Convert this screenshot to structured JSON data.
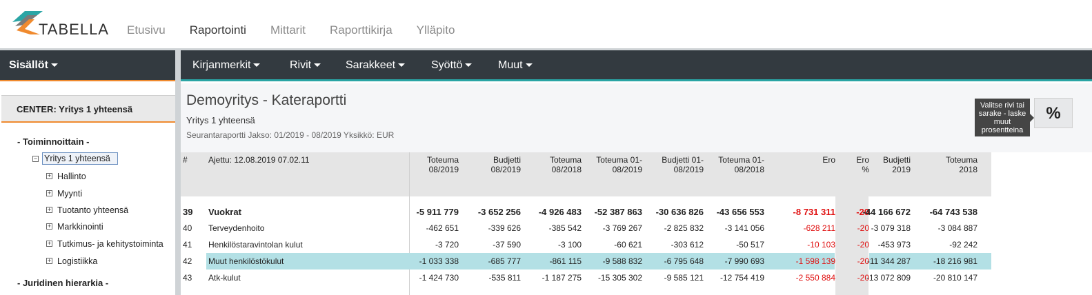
{
  "app": {
    "logo_text": "TABELLA",
    "colors": {
      "accent_orange": "#f08a2e",
      "accent_teal": "#2aa5a5",
      "toolbar": "#333a40",
      "negative": "#e01010",
      "highlight": "#b3e0e5"
    }
  },
  "topnav": [
    "Etusivu",
    "Raportointi",
    "Mittarit",
    "Raporttikirja",
    "Ylläpito"
  ],
  "left": {
    "menu_label": "Sisällöt",
    "center_label": "CENTER: Yritys 1 yhteensä",
    "group1": "- Toiminnoittain -",
    "selected": "Yritys 1 yhteensä",
    "children": [
      "Hallinto",
      "Myynti",
      "Tuotanto yhteensä",
      "Markkinointi",
      "Tutkimus- ja kehitystoiminta",
      "Logistiikka"
    ],
    "group2": "- Juridinen hierarkia -"
  },
  "toolbar": [
    "Kirjanmerkit",
    "Rivit",
    "Sarakkeet",
    "Syöttö",
    "Muut"
  ],
  "report": {
    "title": "Demoyritys - Kateraportti",
    "subtitle": "Yritys 1 yhteensä",
    "meta": "Seurantaraportti Jakso: 01/2019 - 08/2019 Yksikkö: EUR",
    "tooltip": "Valitse rivi tai sarake - laske muut prosentteina",
    "pct_button": "%"
  },
  "table": {
    "headers": {
      "num": "#",
      "run": "Ajettu: 12.08.2019 07.02.11",
      "cols": [
        [
          "Toteuma",
          "08/2019"
        ],
        [
          "Budjetti",
          "08/2019"
        ],
        [
          "Toteuma",
          "08/2018"
        ],
        [
          "Toteuma 01-",
          "08/2019"
        ],
        [
          "Budjetti 01-",
          "08/2019"
        ],
        [
          "Toteuma 01-",
          "08/2018"
        ],
        [
          "Ero",
          ""
        ],
        [
          "Ero",
          "%"
        ],
        [
          "Budjetti",
          "2019"
        ],
        [
          "Toteuma",
          "2018"
        ]
      ]
    },
    "rows": [
      {
        "num": "39",
        "name": "Vuokrat",
        "bold": true,
        "vals": [
          "-5 911 779",
          "-3 652 256",
          "-4 926 483",
          "-52 387 863",
          "-30 636 826",
          "-43 656 553",
          "-8 731 311",
          "-20",
          "-44 166 672",
          "-64 743 538"
        ]
      },
      {
        "num": "40",
        "name": "Terveydenhoito",
        "vals": [
          "-462 651",
          "-339 626",
          "-385 542",
          "-3 769 267",
          "-2 825 832",
          "-3 141 056",
          "-628 211",
          "-20",
          "-3 079 318",
          "-3 084 887"
        ]
      },
      {
        "num": "41",
        "name": "Henkilöstaravintolan kulut",
        "vals": [
          "-3 720",
          "-37 590",
          "-3 100",
          "-60 621",
          "-303 612",
          "-50 517",
          "-10 103",
          "-20",
          "-453 973",
          "-92 242"
        ]
      },
      {
        "num": "42",
        "name": "Muut henkilöstökulut",
        "highlight": true,
        "vals": [
          "-1 033 338",
          "-685 777",
          "-861 115",
          "-9 588 832",
          "-6 795 648",
          "-7 990 693",
          "-1 598 139",
          "-20",
          "-11 344 287",
          "-18 216 981"
        ]
      },
      {
        "num": "43",
        "name": "Atk-kulut",
        "vals": [
          "-1 424 730",
          "-535 811",
          "-1 187 275",
          "-15 305 302",
          "-9 585 121",
          "-12 754 419",
          "-2 550 884",
          "-20",
          "-13 072 809",
          "-20 810 147"
        ]
      }
    ]
  }
}
